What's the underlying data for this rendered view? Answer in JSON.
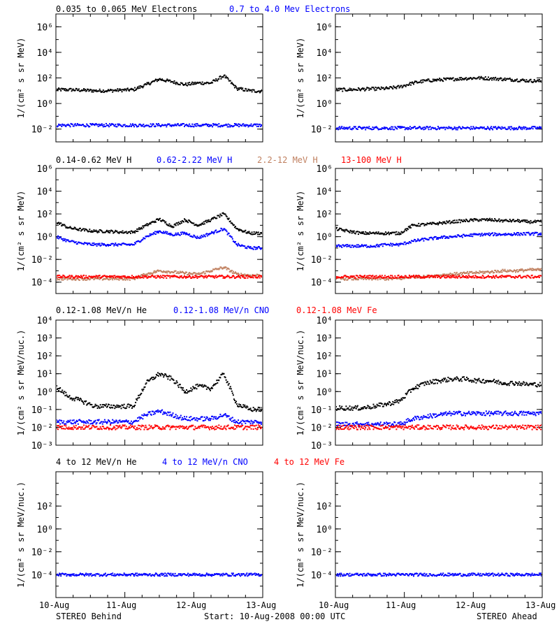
{
  "figure": {
    "footer": {
      "left": "STEREO Behind",
      "center": "Start: 10-Aug-2008 00:00 UTC",
      "right": "STEREO Ahead"
    },
    "x_tick_labels": [
      "10-Aug",
      "11-Aug",
      "12-Aug",
      "13-Aug"
    ]
  },
  "chart_data": [
    {
      "id": "electrons",
      "type": "scatter",
      "scale": "log",
      "ylabel": "1/(cm² s sr MeV)",
      "ylim": [
        0.001,
        10000000
      ],
      "yticks": [
        {
          "v": 0.01,
          "label": "10⁻²"
        },
        {
          "v": 1,
          "label": "10⁰"
        },
        {
          "v": 100,
          "label": "10²"
        },
        {
          "v": 10000,
          "label": "10⁴"
        },
        {
          "v": 1000000,
          "label": "10⁶"
        }
      ],
      "legend": [
        {
          "label": "0.035 to 0.065 MeV Electrons",
          "color": "#000000"
        },
        {
          "label": "0.7 to 4.0 Mev Electrons",
          "color": "#0000ff"
        }
      ],
      "x_range_days": [
        0,
        3
      ],
      "behind": {
        "series": [
          {
            "name": "0.035 to 0.065 MeV Electrons",
            "color": "#000000",
            "y": [
              12,
              12,
              11,
              10,
              10,
              11,
              12,
              30,
              80,
              50,
              30,
              40,
              40,
              150,
              15,
              10,
              9
            ]
          },
          {
            "name": "0.7 to 4.0 Mev Electrons",
            "color": "#0000ff",
            "y": [
              0.02,
              0.02,
              0.02,
              0.02,
              0.02,
              0.02,
              0.02,
              0.02,
              0.02,
              0.02,
              0.02,
              0.02,
              0.02,
              0.02,
              0.02,
              0.02,
              0.02
            ]
          }
        ]
      },
      "ahead": {
        "series": [
          {
            "name": "0.035 to 0.065 MeV Electrons",
            "color": "#000000",
            "y": [
              12,
              12,
              13,
              14,
              15,
              20,
              40,
              60,
              70,
              80,
              90,
              100,
              90,
              80,
              70,
              60,
              55
            ]
          },
          {
            "name": "0.7 to 4.0 Mev Electrons",
            "color": "#0000ff",
            "y": [
              0.012,
              0.012,
              0.012,
              0.012,
              0.012,
              0.012,
              0.012,
              0.012,
              0.012,
              0.012,
              0.012,
              0.012,
              0.012,
              0.012,
              0.012,
              0.012,
              0.012
            ]
          }
        ]
      }
    },
    {
      "id": "protons",
      "type": "scatter",
      "scale": "log",
      "ylabel": "1/(cm² s sr MeV)",
      "ylim": [
        1e-05,
        1000000
      ],
      "yticks": [
        {
          "v": 0.0001,
          "label": "10⁻⁴"
        },
        {
          "v": 0.01,
          "label": "10⁻²"
        },
        {
          "v": 1,
          "label": "10⁰"
        },
        {
          "v": 100,
          "label": "10²"
        },
        {
          "v": 10000,
          "label": "10⁴"
        },
        {
          "v": 1000000,
          "label": "10⁶"
        }
      ],
      "legend": [
        {
          "label": "0.14-0.62 MeV H",
          "color": "#000000"
        },
        {
          "label": "0.62-2.22 MeV H",
          "color": "#0000ff"
        },
        {
          "label": "2.2-12 MeV H",
          "color": "#c08060"
        },
        {
          "label": "13-100 MeV H",
          "color": "#ff0000"
        }
      ],
      "x_range_days": [
        0,
        3
      ],
      "behind": {
        "series": [
          {
            "name": "0.14-0.62 MeV H",
            "color": "#000000",
            "y": [
              20,
              6,
              4,
              3,
              3,
              2.5,
              2.5,
              10,
              35,
              8,
              30,
              10,
              30,
              100,
              5,
              2,
              2
            ]
          },
          {
            "name": "0.62-2.22 MeV H",
            "color": "#0000ff",
            "y": [
              1,
              0.4,
              0.25,
              0.2,
              0.2,
              0.2,
              0.2,
              1,
              3,
              1.5,
              2,
              0.8,
              2,
              5,
              0.2,
              0.1,
              0.1
            ]
          },
          {
            "name": "2.2-12 MeV H",
            "color": "#c08060",
            "y": [
              0.0002,
              0.0002,
              0.0002,
              0.0002,
              0.0002,
              0.0002,
              0.0002,
              0.0005,
              0.001,
              0.0008,
              0.0006,
              0.0005,
              0.001,
              0.002,
              0.0005,
              0.0004,
              0.0004
            ]
          },
          {
            "name": "13-100 MeV H",
            "color": "#ff0000",
            "y": [
              0.0003,
              0.0003,
              0.0003,
              0.0003,
              0.0003,
              0.0003,
              0.0003,
              0.0003,
              0.0003,
              0.0003,
              0.0003,
              0.0003,
              0.0003,
              0.0003,
              0.0003,
              0.0003,
              0.0003
            ]
          }
        ]
      },
      "ahead": {
        "series": [
          {
            "name": "0.14-0.62 MeV H",
            "color": "#000000",
            "y": [
              5,
              3,
              2,
              2,
              2,
              2,
              10,
              12,
              15,
              20,
              25,
              30,
              30,
              25,
              25,
              20,
              20
            ]
          },
          {
            "name": "0.62-2.22 MeV H",
            "color": "#0000ff",
            "y": [
              0.15,
              0.15,
              0.15,
              0.15,
              0.2,
              0.2,
              0.4,
              0.6,
              0.8,
              1,
              1.2,
              1.5,
              1.6,
              1.6,
              1.7,
              1.8,
              1.8
            ]
          },
          {
            "name": "2.2-12 MeV H",
            "color": "#c08060",
            "y": [
              0.0002,
              0.0002,
              0.0002,
              0.0002,
              0.0002,
              0.0002,
              0.0003,
              0.0003,
              0.0004,
              0.0005,
              0.0006,
              0.0007,
              0.0008,
              0.001,
              0.001,
              0.0012,
              0.0012
            ]
          },
          {
            "name": "13-100 MeV H",
            "color": "#ff0000",
            "y": [
              0.0003,
              0.0003,
              0.0003,
              0.0003,
              0.0003,
              0.0003,
              0.0003,
              0.0003,
              0.0003,
              0.0003,
              0.0003,
              0.0003,
              0.0003,
              0.0003,
              0.0003,
              0.0003,
              0.0003
            ]
          }
        ]
      }
    },
    {
      "id": "heavy-low",
      "type": "scatter",
      "scale": "log",
      "ylabel": "1/(cm² s sr MeV/nuc.)",
      "ylim": [
        0.001,
        10000
      ],
      "yticks": [
        {
          "v": 0.001,
          "label": "10⁻³"
        },
        {
          "v": 0.01,
          "label": "10⁻²"
        },
        {
          "v": 0.1,
          "label": "10⁻¹"
        },
        {
          "v": 1,
          "label": "10⁰"
        },
        {
          "v": 10,
          "label": "10¹"
        },
        {
          "v": 100,
          "label": "10²"
        },
        {
          "v": 1000,
          "label": "10³"
        },
        {
          "v": 10000,
          "label": "10⁴"
        }
      ],
      "legend": [
        {
          "label": "0.12-1.08 MeV/n He",
          "color": "#000000"
        },
        {
          "label": "0.12-1.08 MeV/n CNO",
          "color": "#0000ff"
        },
        {
          "label": "0.12-1.08 MeV Fe",
          "color": "#ff0000"
        }
      ],
      "x_range_days": [
        0,
        3
      ],
      "behind": {
        "series": [
          {
            "name": "0.12-1.08 MeV/n He",
            "color": "#000000",
            "y": [
              2,
              0.5,
              0.3,
              0.15,
              0.15,
              0.15,
              0.15,
              3,
              10,
              5,
              1,
              2,
              1.5,
              10,
              0.2,
              0.1,
              0.1
            ]
          },
          {
            "name": "0.12-1.08 MeV/n CNO",
            "color": "#0000ff",
            "y": [
              0.02,
              0.02,
              0.02,
              0.02,
              0.02,
              0.02,
              0.02,
              0.05,
              0.08,
              0.05,
              0.03,
              0.03,
              0.03,
              0.05,
              0.02,
              0.02,
              0.02
            ]
          },
          {
            "name": "0.12-1.08 MeV Fe",
            "color": "#ff0000",
            "y": [
              0.01,
              0.01,
              0.01,
              0.01,
              0.01,
              0.01,
              0.01,
              0.01,
              0.01,
              0.01,
              0.01,
              0.01,
              0.01,
              0.01,
              0.01,
              0.01,
              0.01
            ]
          }
        ]
      },
      "ahead": {
        "series": [
          {
            "name": "0.12-1.08 MeV/n He",
            "color": "#000000",
            "y": [
              0.12,
              0.12,
              0.12,
              0.15,
              0.2,
              0.3,
              1.5,
              3,
              4,
              5,
              5,
              4,
              4,
              3,
              3,
              2.5,
              2.5
            ]
          },
          {
            "name": "0.12-1.08 MeV/n CNO",
            "color": "#0000ff",
            "y": [
              0.015,
              0.015,
              0.015,
              0.015,
              0.015,
              0.015,
              0.03,
              0.04,
              0.05,
              0.06,
              0.06,
              0.06,
              0.06,
              0.06,
              0.06,
              0.06,
              0.06
            ]
          },
          {
            "name": "0.12-1.08 MeV Fe",
            "color": "#ff0000",
            "y": [
              0.01,
              0.01,
              0.01,
              0.01,
              0.01,
              0.01,
              0.01,
              0.01,
              0.01,
              0.01,
              0.01,
              0.01,
              0.01,
              0.01,
              0.01,
              0.01,
              0.01
            ]
          }
        ]
      }
    },
    {
      "id": "heavy-high",
      "type": "scatter",
      "scale": "log",
      "ylabel": "1/(cm² s sr MeV/nuc.)",
      "ylim": [
        1e-06,
        100000
      ],
      "yticks": [
        {
          "v": 0.0001,
          "label": "10⁻⁴"
        },
        {
          "v": 0.01,
          "label": "10⁻²"
        },
        {
          "v": 1,
          "label": "10⁰"
        },
        {
          "v": 100,
          "label": "10²"
        }
      ],
      "legend": [
        {
          "label": "4 to 12 MeV/n He",
          "color": "#000000"
        },
        {
          "label": "4 to 12 MeV/n CNO",
          "color": "#0000ff"
        },
        {
          "label": "4 to 12 MeV Fe",
          "color": "#ff0000"
        }
      ],
      "x_range_days": [
        0,
        3
      ],
      "behind": {
        "series": [
          {
            "name": "4 to 12 MeV/n CNO",
            "color": "#0000ff",
            "y": [
              0.0001,
              0.0001,
              0.0001,
              0.0001,
              0.0001,
              0.0001,
              0.0001,
              0.0001,
              0.0001,
              0.0001,
              0.0001,
              0.0001,
              0.0001,
              0.0001,
              0.0001,
              0.0001,
              0.0001
            ]
          }
        ]
      },
      "ahead": {
        "series": [
          {
            "name": "4 to 12 MeV/n CNO",
            "color": "#0000ff",
            "y": [
              0.0001,
              0.0001,
              0.0001,
              0.0001,
              0.0001,
              0.0001,
              0.0001,
              0.0001,
              0.0001,
              0.0001,
              0.0001,
              0.0001,
              0.0001,
              0.0001,
              0.0001,
              0.0001,
              0.0001
            ]
          }
        ]
      }
    }
  ]
}
